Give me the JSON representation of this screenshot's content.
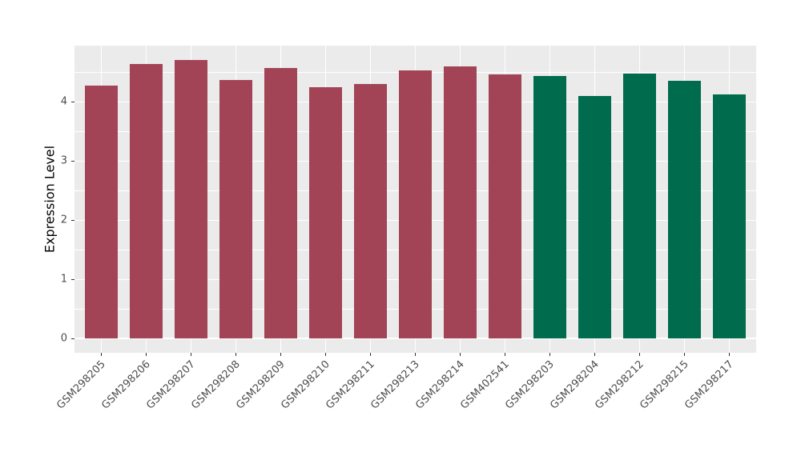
{
  "chart_data": {
    "type": "bar",
    "title": "",
    "xlabel": "",
    "ylabel": "Expression Level",
    "categories": [
      "GSM298205",
      "GSM298206",
      "GSM298207",
      "GSM298208",
      "GSM298209",
      "GSM298210",
      "GSM298211",
      "GSM298213",
      "GSM298214",
      "GSM402541",
      "GSM298203",
      "GSM298204",
      "GSM298212",
      "GSM298215",
      "GSM298217"
    ],
    "values": [
      4.27,
      4.64,
      4.71,
      4.37,
      4.57,
      4.25,
      4.3,
      4.53,
      4.6,
      4.46,
      4.44,
      4.1,
      4.48,
      4.35,
      4.12
    ],
    "bar_groups": [
      "groupA",
      "groupA",
      "groupA",
      "groupA",
      "groupA",
      "groupA",
      "groupA",
      "groupA",
      "groupA",
      "groupA",
      "groupB",
      "groupB",
      "groupB",
      "groupB",
      "groupB"
    ],
    "group_colors": {
      "groupA": "#A24455",
      "groupB": "#006B4D"
    },
    "yticks": [
      0,
      1,
      2,
      3,
      4
    ],
    "y_minor_ticks": [
      0.5,
      1.5,
      2.5,
      3.5,
      4.5
    ],
    "ylim": [
      -0.24,
      4.95
    ],
    "bar_relative_width": 0.72,
    "discrete_axis_padding": 0.6,
    "legend": "none",
    "grid": true,
    "panel_background": "#EBEBEB",
    "grid_color": "#FFFFFF",
    "axis_text_color": "#4D4D4D",
    "tick_mark_color": "#333333",
    "figure_background": "#FFFFFF"
  }
}
